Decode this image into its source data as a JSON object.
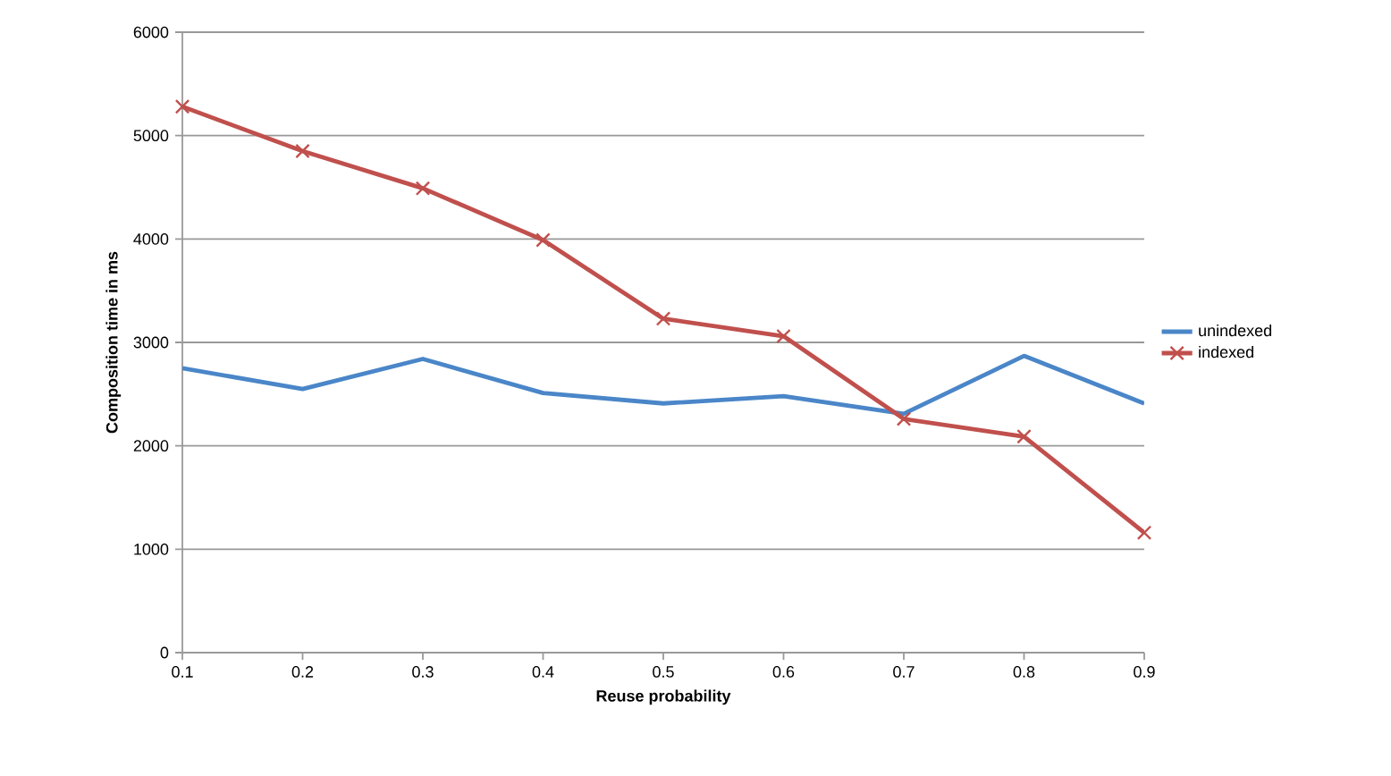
{
  "chart_data": {
    "type": "line",
    "xlabel": "Reuse probability",
    "ylabel": "Composition time in ms",
    "x": [
      0.1,
      0.2,
      0.3,
      0.4,
      0.5,
      0.6,
      0.7,
      0.8,
      0.9
    ],
    "series": [
      {
        "name": "unindexed",
        "color": "#4a86c8",
        "marker": "none",
        "values": [
          2750,
          2550,
          2840,
          2510,
          2410,
          2480,
          2310,
          2870,
          2410
        ]
      },
      {
        "name": "indexed",
        "color": "#c0504d",
        "marker": "cross",
        "values": [
          5280,
          4850,
          4490,
          3990,
          3230,
          3060,
          2260,
          2090,
          1160
        ]
      }
    ],
    "xlim": [
      0.1,
      0.9
    ],
    "xticks": [
      0.1,
      0.2,
      0.3,
      0.4,
      0.5,
      0.6,
      0.7,
      0.8,
      0.9
    ],
    "ylim": [
      0,
      6000
    ],
    "yticks": [
      0,
      1000,
      2000,
      3000,
      4000,
      5000,
      6000
    ],
    "grid": "y",
    "legend": "right"
  }
}
